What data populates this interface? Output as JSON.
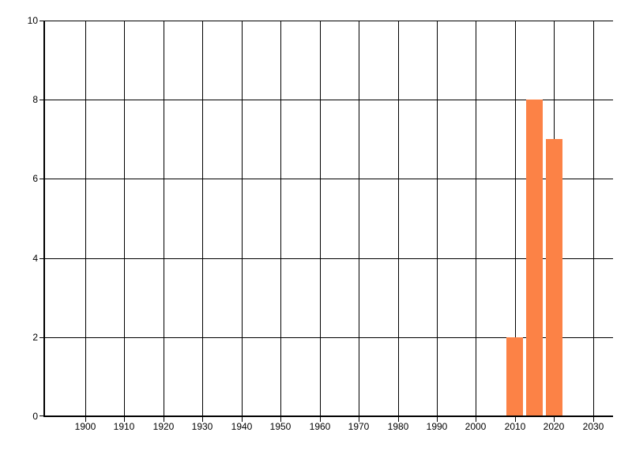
{
  "chart_data": {
    "type": "bar",
    "title": "",
    "xlabel": "",
    "ylabel": "",
    "x": [
      2010,
      2015,
      2020
    ],
    "values": [
      2,
      8,
      7
    ],
    "bar_color": "#FC8246",
    "bar_width_years": 4.25,
    "xlim": [
      1889.7,
      2035.1
    ],
    "ylim": [
      0,
      10
    ],
    "xticks": [
      1900,
      1910,
      1920,
      1930,
      1940,
      1950,
      1960,
      1970,
      1980,
      1990,
      2000,
      2010,
      2020,
      2030
    ],
    "yticks": [
      0,
      2,
      4,
      6,
      8,
      10
    ],
    "grid": true,
    "legend": false,
    "axis_color": "#000000",
    "background_color": "#FFFFFF"
  }
}
